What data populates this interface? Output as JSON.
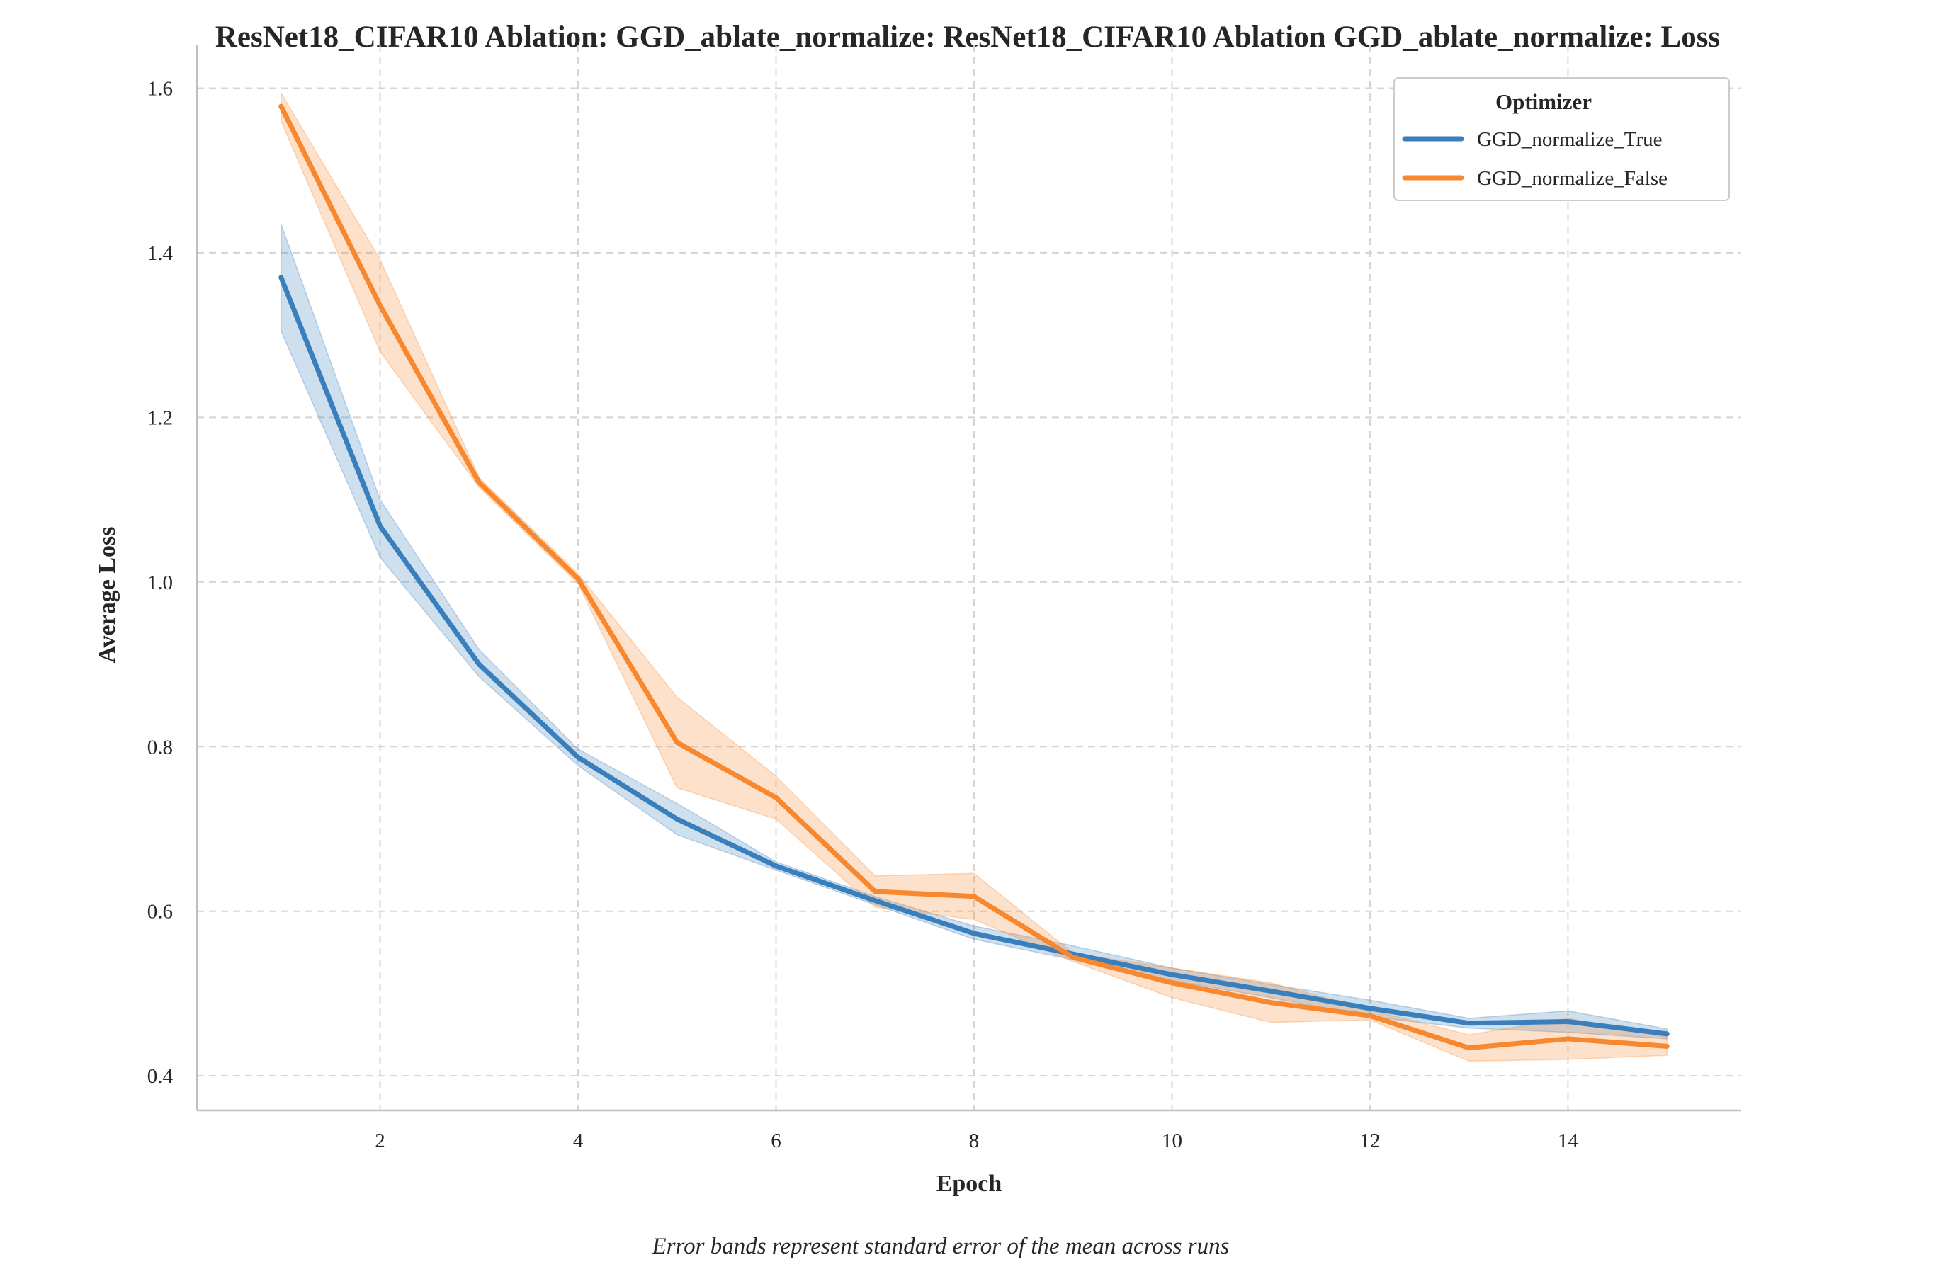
{
  "chart_data": {
    "type": "line",
    "title": "ResNet18_CIFAR10 Ablation: GGD_ablate_normalize: ResNet18_CIFAR10 Ablation GGD_ablate_normalize: Loss",
    "xlabel": "Epoch",
    "ylabel": "Average Loss",
    "caption": "Error bands represent standard error of the mean across runs",
    "xlim": [
      0.15,
      15.75
    ],
    "ylim": [
      0.358,
      1.652
    ],
    "xticks": [
      2,
      4,
      6,
      8,
      10,
      12,
      14
    ],
    "yticks": [
      0.4,
      0.6,
      0.8,
      1.0,
      1.2,
      1.4,
      1.6
    ],
    "grid": true,
    "legend": {
      "title": "Optimizer",
      "placement": "top-right"
    },
    "x": [
      1,
      2,
      3,
      4,
      5,
      6,
      7,
      8,
      9,
      10,
      11,
      12,
      13,
      14,
      15
    ],
    "series": [
      {
        "name": "GGD_normalize_True",
        "color": "#3a7fbd",
        "values": [
          1.37,
          1.068,
          0.9,
          0.787,
          0.712,
          0.655,
          0.613,
          0.573,
          0.548,
          0.523,
          0.503,
          0.482,
          0.464,
          0.466,
          0.451
        ],
        "lower": [
          1.305,
          1.03,
          0.885,
          0.777,
          0.693,
          0.65,
          0.608,
          0.566,
          0.541,
          0.516,
          0.495,
          0.472,
          0.458,
          0.453,
          0.445
        ],
        "upper": [
          1.435,
          1.1,
          0.918,
          0.797,
          0.731,
          0.66,
          0.618,
          0.582,
          0.558,
          0.531,
          0.511,
          0.492,
          0.47,
          0.479,
          0.457
        ]
      },
      {
        "name": "GGD_normalize_False",
        "color": "#f7882f",
        "values": [
          1.578,
          1.336,
          1.121,
          1.004,
          0.805,
          0.738,
          0.624,
          0.618,
          0.544,
          0.513,
          0.489,
          0.473,
          0.434,
          0.445,
          0.436
        ],
        "lower": [
          1.56,
          1.28,
          1.115,
          0.998,
          0.75,
          0.712,
          0.605,
          0.59,
          0.539,
          0.495,
          0.465,
          0.468,
          0.418,
          0.42,
          0.425
        ],
        "upper": [
          1.594,
          1.392,
          1.127,
          1.01,
          0.86,
          0.764,
          0.643,
          0.646,
          0.549,
          0.531,
          0.513,
          0.48,
          0.45,
          0.47,
          0.447
        ]
      }
    ]
  }
}
